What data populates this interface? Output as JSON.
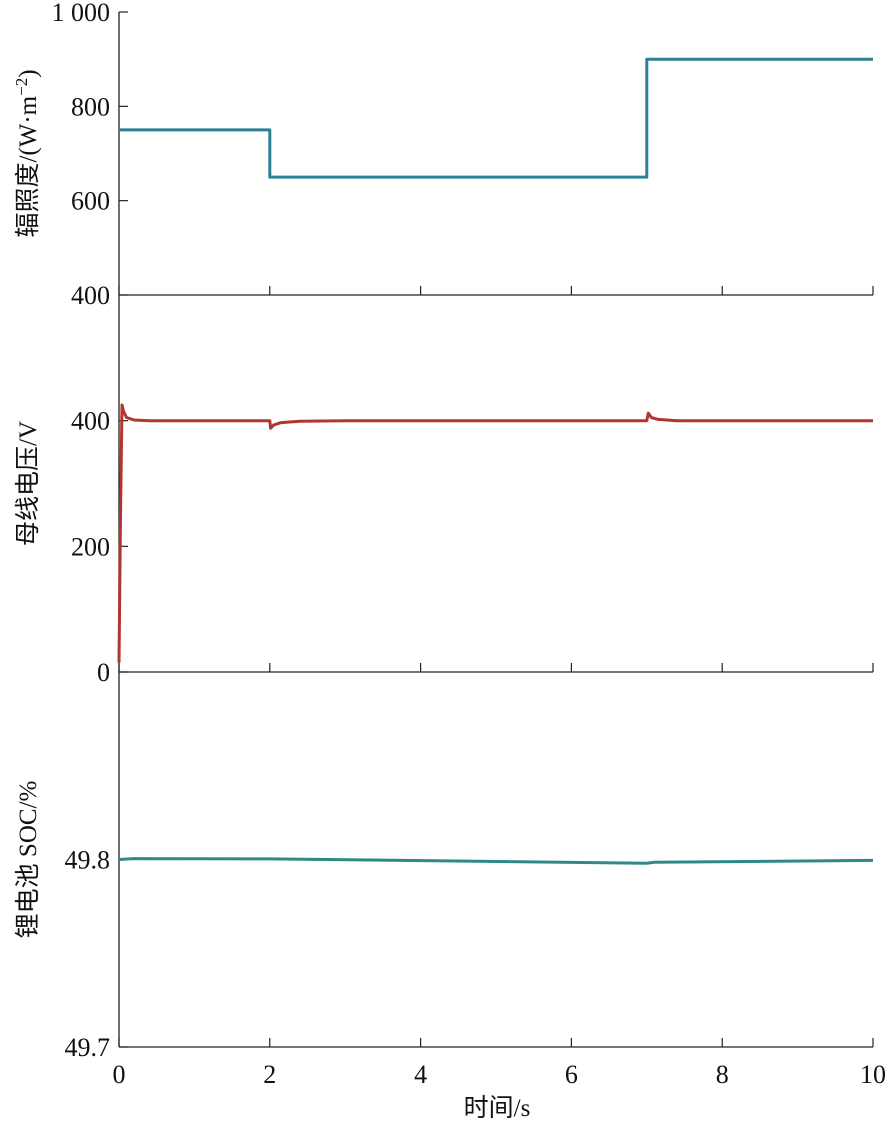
{
  "chart_data": [
    {
      "type": "line",
      "title": "",
      "xlabel": "",
      "ylabel": "辐照度/(W·m⁻²)",
      "ylabel_parts": {
        "main": "辐照度/(W·m",
        "sup": "−2",
        "close": ")"
      },
      "xlim": [
        0,
        10
      ],
      "ylim": [
        400,
        1000
      ],
      "yticks": [
        400,
        600,
        800,
        1000
      ],
      "ytick_labels": [
        "400",
        "600",
        "800",
        "1 000"
      ],
      "grid": false,
      "color": "#2e8096",
      "series": [
        {
          "x": [
            0,
            2,
            2,
            7,
            7,
            10
          ],
          "y": [
            750,
            750,
            650,
            650,
            900,
            900
          ]
        }
      ]
    },
    {
      "type": "line",
      "title": "",
      "xlabel": "",
      "ylabel": "母线电压/V",
      "xlim": [
        0,
        10
      ],
      "ylim": [
        0,
        600
      ],
      "yticks": [
        0,
        200,
        400
      ],
      "ytick_labels": [
        "0",
        "200",
        "400"
      ],
      "grid": false,
      "color": "#b0362f",
      "series": [
        {
          "x": [
            0,
            0.02,
            0.04,
            0.06,
            0.1,
            0.2,
            0.4,
            1.0,
            2.0,
            2.01,
            2.05,
            2.15,
            2.4,
            3.0,
            7.0,
            7.02,
            7.06,
            7.15,
            7.4,
            8.0,
            10.0
          ],
          "y": [
            15,
            250,
            425,
            415,
            405,
            401,
            400,
            400,
            400,
            388,
            393,
            397,
            399,
            400,
            400,
            412,
            405,
            402,
            400,
            400,
            400
          ]
        }
      ]
    },
    {
      "type": "line",
      "title": "",
      "xlabel": "时间/s",
      "ylabel": "锂电池 SOC/%",
      "xlim": [
        0,
        10
      ],
      "ylim": [
        49.7,
        49.9
      ],
      "yticks": [
        49.7,
        49.8
      ],
      "ytick_labels": [
        "49.7",
        "49.8"
      ],
      "xticks": [
        0,
        2,
        4,
        6,
        8,
        10
      ],
      "xtick_labels": [
        "0",
        "2",
        "4",
        "6",
        "8",
        "10"
      ],
      "grid": false,
      "color": "#2e8a88",
      "series": [
        {
          "x": [
            0,
            0.2,
            2.0,
            7.0,
            7.1,
            10.0
          ],
          "y": [
            49.8,
            49.8005,
            49.8003,
            49.798,
            49.7985,
            49.7995
          ]
        }
      ]
    }
  ]
}
